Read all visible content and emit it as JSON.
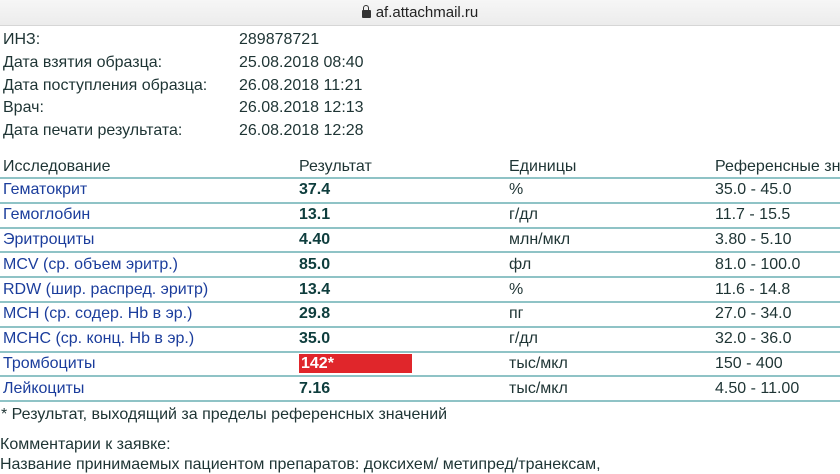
{
  "browser": {
    "url": "af.attachmail.ru"
  },
  "info": [
    {
      "label": "ИНЗ:",
      "value": "289878721"
    },
    {
      "label": "Дата взятия образца:",
      "value": "25.08.2018 08:40"
    },
    {
      "label": "Дата поступления образца:",
      "value": "26.08.2018 11:21"
    },
    {
      "label": "Врач:",
      "value": "26.08.2018 12:13"
    },
    {
      "label": "Дата печати результата:",
      "value": "26.08.2018 12:28"
    }
  ],
  "table": {
    "headers": [
      "Исследование",
      "Результат",
      "Единицы",
      "Референсные зна"
    ],
    "rows": [
      {
        "name": "Гематокрит",
        "result": "37.4",
        "units": "%",
        "ref": "35.0 - 45.0"
      },
      {
        "name": "Гемоглобин",
        "result": "13.1",
        "units": "г/дл",
        "ref": "11.7 - 15.5"
      },
      {
        "name": "Эритроциты",
        "result": "4.40",
        "units": "млн/мкл",
        "ref": "3.80 - 5.10"
      },
      {
        "name": "MCV (ср. объем эритр.)",
        "result": "85.0",
        "units": "фл",
        "ref": "81.0 - 100.0"
      },
      {
        "name": "RDW (шир. распред. эритр)",
        "result": "13.4",
        "units": "%",
        "ref": "11.6 - 14.8"
      },
      {
        "name": "MCH (ср. содер. Hb в эр.)",
        "result": "29.8",
        "units": "пг",
        "ref": "27.0 - 34.0"
      },
      {
        "name": "MCHC (ср. конц. Hb в эр.)",
        "result": "35.0",
        "units": "г/дл",
        "ref": "32.0 - 36.0"
      },
      {
        "name": "Тромбоциты",
        "result": "142*",
        "units": "тыс/мкл",
        "ref": "150 - 400",
        "flagged": true
      },
      {
        "name": "Лейкоциты",
        "result": "7.16",
        "units": "тыс/мкл",
        "ref": "4.50 - 11.00"
      }
    ]
  },
  "footnote": "* Результат, выходящий за пределы референсных значений",
  "comments_label": "Комментарии к заявке:",
  "comments_text": "Название принимаемых пациентом препаратов: доксихем/ метипред/транексам,",
  "colors": {
    "link": "#1b3d9c",
    "flag": "#e0262b",
    "border": "#8fc3c6"
  }
}
